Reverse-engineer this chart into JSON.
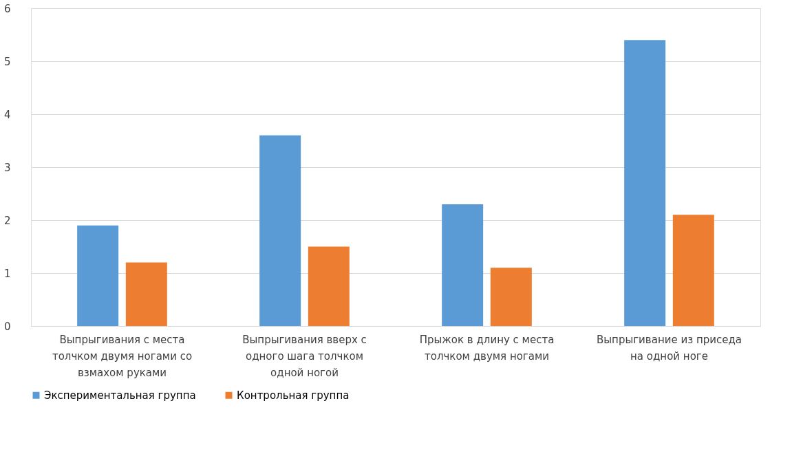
{
  "chart_data": {
    "type": "bar",
    "categories": [
      "Выпрыгивания с места толчком двумя ногами со взмахом руками",
      "Выпрыгивания вверх с одного шага толчком одной ногой",
      "Прыжок в длину с места толчком двумя ногами",
      "Выпрыгивание из приседа на одной ноге"
    ],
    "series": [
      {
        "name": "Экспериментальная группа",
        "color": "#5b9bd5",
        "values": [
          1.9,
          3.6,
          2.3,
          5.4
        ]
      },
      {
        "name": "Контрольная группа",
        "color": "#ed7d31",
        "values": [
          1.2,
          1.5,
          1.1,
          2.1
        ]
      }
    ],
    "ylim": [
      0,
      6
    ],
    "yticks": [
      0,
      1,
      2,
      3,
      4,
      5,
      6
    ],
    "grid": "y",
    "legend": "bottom"
  }
}
